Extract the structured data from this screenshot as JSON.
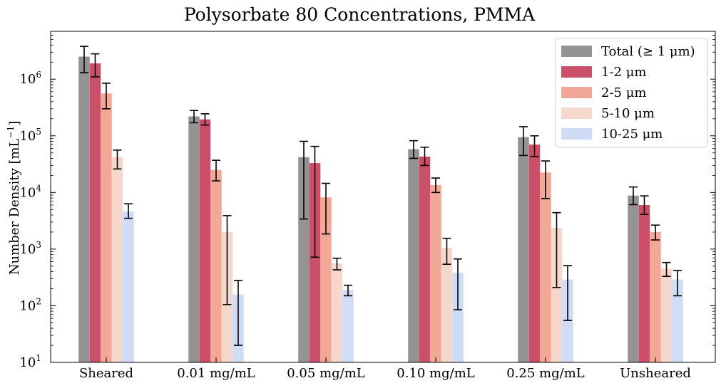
{
  "chart_data": {
    "type": "bar",
    "title": "Polysorbate 80 Concentrations, PMMA",
    "xlabel": "",
    "ylabel": "Number Density [mL",
    "ylabel_sup": "−1",
    "ylabel_end": "]",
    "yscale": "log",
    "ylim": [
      10,
      7000000
    ],
    "y_ticks": [
      {
        "value": 10,
        "base": "10",
        "exp": "1"
      },
      {
        "value": 100,
        "base": "10",
        "exp": "2"
      },
      {
        "value": 1000,
        "base": "10",
        "exp": "3"
      },
      {
        "value": 10000,
        "base": "10",
        "exp": "4"
      },
      {
        "value": 100000,
        "base": "10",
        "exp": "5"
      },
      {
        "value": 1000000,
        "base": "10",
        "exp": "6"
      }
    ],
    "categories": [
      "Sheared",
      "0.01 mg/mL",
      "0.05 mg/mL",
      "0.10 mg/mL",
      "0.25 mg/mL",
      "Unsheared"
    ],
    "legend_position": "top-right",
    "grid": false,
    "series": [
      {
        "name": "Total (≥ 1 μm)",
        "color": "#939393",
        "values": [
          2500000,
          220000,
          42000,
          58000,
          95000,
          8800
        ],
        "err_low": [
          1300000,
          170000,
          3400,
          40000,
          45000,
          6100
        ],
        "err_high": [
          3800000,
          280000,
          80000,
          82000,
          145000,
          12500
        ]
      },
      {
        "name": "1-2 μm",
        "color": "#c95068",
        "values": [
          1900000,
          195000,
          33000,
          43000,
          70000,
          6000
        ],
        "err_low": [
          1100000,
          155000,
          720,
          30000,
          43000,
          4100
        ],
        "err_high": [
          2800000,
          245000,
          65000,
          63000,
          100000,
          8700
        ]
      },
      {
        "name": "2-5 μm",
        "color": "#f3a796",
        "values": [
          560000,
          25000,
          8200,
          13500,
          22500,
          2000
        ],
        "err_low": [
          300000,
          16000,
          1850,
          10000,
          7800,
          1450
        ],
        "err_high": [
          850000,
          37000,
          14500,
          18000,
          36000,
          2650
        ]
      },
      {
        "name": "5-10 μm",
        "color": "#f5d8cb",
        "values": [
          42000,
          2000,
          560,
          1050,
          2350,
          450
        ],
        "err_low": [
          26000,
          105,
          430,
          540,
          210,
          330
        ],
        "err_high": [
          56000,
          3900,
          690,
          1550,
          4400,
          580
        ]
      },
      {
        "name": "10-25 μm",
        "color": "#cfdcf5",
        "values": [
          4600,
          158,
          190,
          380,
          290,
          290
        ],
        "err_low": [
          3500,
          20,
          150,
          85,
          55,
          150
        ],
        "err_high": [
          6300,
          280,
          230,
          670,
          510,
          420
        ]
      }
    ]
  }
}
